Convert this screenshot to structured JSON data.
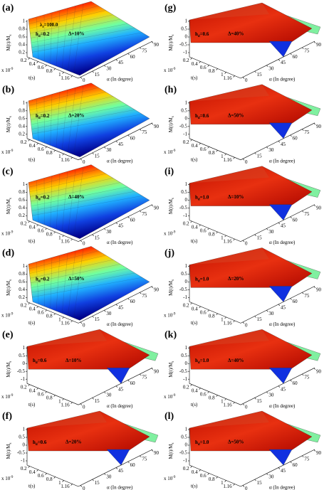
{
  "axes": {
    "z_label": {
      "text": "M(t)/M",
      "sub": "s"
    },
    "t_label": "t(s)",
    "t_multiplier": {
      "text": "x 10",
      "sup": "-9"
    },
    "t_ticks": [
      "0.2",
      "0.4",
      "0.6",
      "0.8",
      "1",
      "1.16"
    ],
    "alpha_label": "α (In degree)",
    "alpha_ticks": [
      "0",
      "15",
      "30",
      "45",
      "60",
      "75",
      "90"
    ]
  },
  "panels": [
    {
      "label": "(a)",
      "z_ticks": [
        "1",
        "0.8",
        "0.6",
        "0.4",
        "0.2"
      ],
      "h": {
        "symbol": "h",
        "sub": "d",
        "value": "=0.2"
      },
      "delta": "Δ=10%",
      "lambda": {
        "symbol": "λ",
        "sub": "r",
        "value": "=100.0"
      }
    },
    {
      "label": "(b)",
      "z_ticks": [
        "1",
        "0.8",
        "0.6",
        "0.4",
        "0.2"
      ],
      "h": {
        "symbol": "h",
        "sub": "d",
        "value": "=0.2"
      },
      "delta": "Δ=20%"
    },
    {
      "label": "(c)",
      "z_ticks": [
        "1",
        "0.8",
        "0.6",
        "0.4",
        "0.2"
      ],
      "h": {
        "symbol": "h",
        "sub": "d",
        "value": "=0.2"
      },
      "delta": "Δ=40%"
    },
    {
      "label": "(d)",
      "z_ticks": [
        "1",
        "0.8",
        "0.6",
        "0.4",
        "0.2"
      ],
      "h": {
        "symbol": "h",
        "sub": "d",
        "value": "=0.2"
      },
      "delta": "Δ=50%"
    },
    {
      "label": "(e)",
      "z_ticks": [
        "1",
        "0.5",
        "0",
        "-0.5",
        "-1"
      ],
      "h": {
        "symbol": "h",
        "sub": "d",
        "value": "=0.6"
      },
      "delta": "Δ=10%"
    },
    {
      "label": "(f)",
      "z_ticks": [
        "1",
        "0.5",
        "0",
        "-0.5",
        "-1"
      ],
      "h": {
        "symbol": "h",
        "sub": "d",
        "value": "=0.6"
      },
      "delta": "Δ=20%"
    },
    {
      "label": "(g)",
      "z_ticks": [
        "1",
        "0.5",
        "0",
        "-0.5",
        "-1"
      ],
      "h": {
        "symbol": "h",
        "sub": "d",
        "value": "=0.6"
      },
      "delta": "Δ=40%"
    },
    {
      "label": "(h)",
      "z_ticks": [
        "1",
        "0.5",
        "0",
        "-0.5",
        "-1"
      ],
      "h": {
        "symbol": "h",
        "sub": "d",
        "value": "=0.6"
      },
      "delta": "Δ=50%"
    },
    {
      "label": "(i)",
      "z_ticks": [
        "1",
        "0.5",
        "0",
        "-0.5",
        "-1"
      ],
      "h": {
        "symbol": "h",
        "sub": "d",
        "value": "=1.0"
      },
      "delta": "Δ=10%"
    },
    {
      "label": "(j)",
      "z_ticks": [
        "1",
        "0.5",
        "0",
        "-0.5",
        "-1"
      ],
      "h": {
        "symbol": "h",
        "sub": "d",
        "value": "=1.0"
      },
      "delta": "Δ=20%"
    },
    {
      "label": "(k)",
      "z_ticks": [
        "1",
        "0.5",
        "0",
        "-0.5",
        "-1"
      ],
      "h": {
        "symbol": "h",
        "sub": "d",
        "value": "=1.0"
      },
      "delta": "Δ=40%"
    },
    {
      "label": "(l)",
      "z_ticks": [
        "1",
        "0.5",
        "0",
        "-0.5",
        "-1"
      ],
      "h": {
        "symbol": "h",
        "sub": "d",
        "value": "=1.0"
      },
      "delta": "Δ=50%"
    }
  ]
}
